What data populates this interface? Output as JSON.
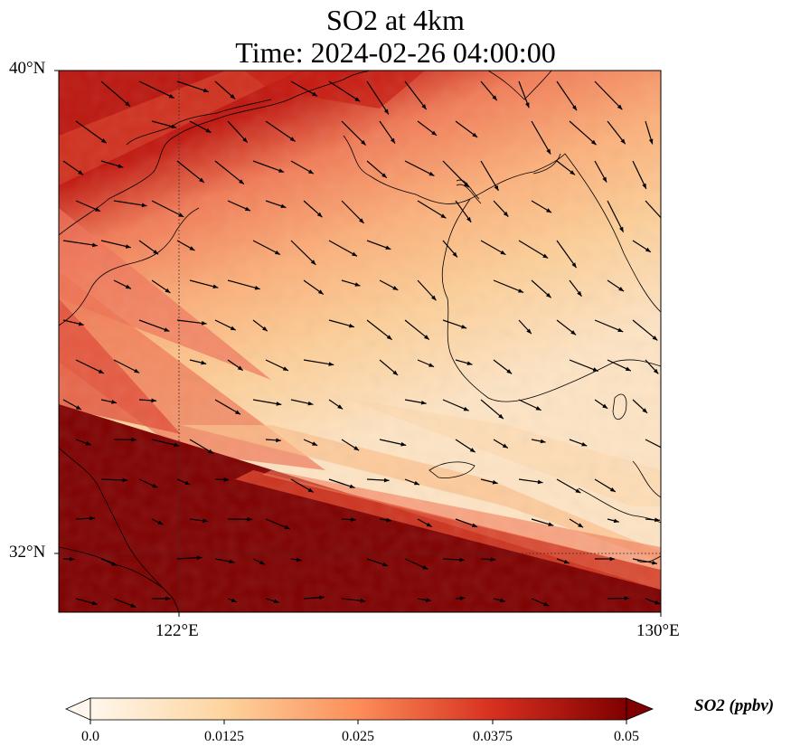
{
  "title_line1": "SO2 at 4km",
  "title_line2": "Time: 2024-02-26 04:00:00",
  "map": {
    "lon_range": [
      120,
      130
    ],
    "lat_range": [
      31,
      40
    ],
    "lat_ticks": [
      "40°N",
      "32°N"
    ],
    "lon_ticks": [
      "122°E",
      "130°E"
    ],
    "gridlines": {
      "lat": [
        32
      ],
      "lon": [
        122
      ]
    },
    "wind_vectors": "shown",
    "coastlines": "shown"
  },
  "colorbar": {
    "label": "SO2 (ppbv)",
    "min": 0.0,
    "max": 0.05,
    "ticks": [
      "0.0",
      "0.0125",
      "0.025",
      "0.0375",
      "0.05"
    ],
    "cmap": "OrRd",
    "extend": "both",
    "colors": [
      "#fff7ec",
      "#fdd49e",
      "#fc8d59",
      "#d7301f",
      "#7f0000"
    ]
  }
}
